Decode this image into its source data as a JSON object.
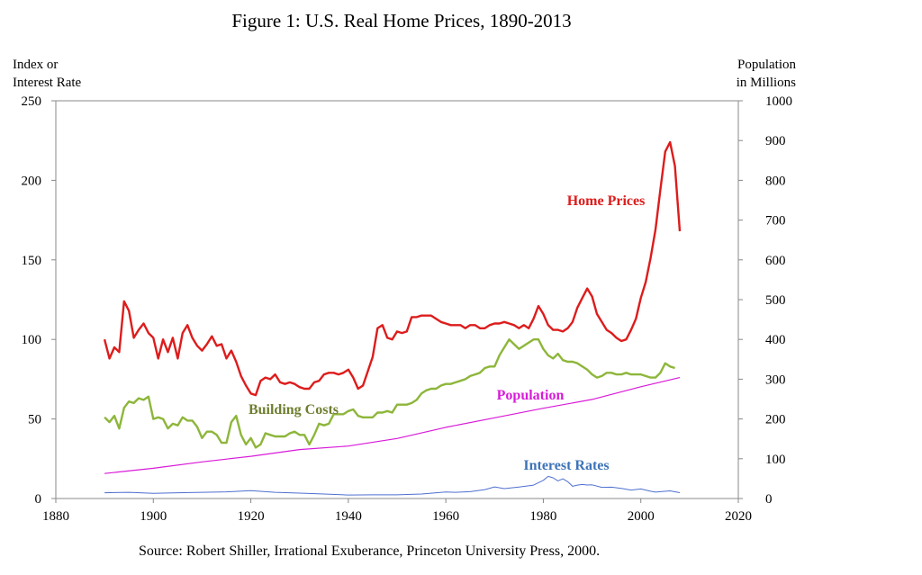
{
  "chart_data": {
    "type": "line",
    "title": "Figure 1: U.S. Real Home Prices, 1890-2013",
    "ylabel_left": [
      "Index or",
      "Interest Rate"
    ],
    "ylabel_right": [
      "Population",
      "in Millions"
    ],
    "source": "Source: Robert Shiller, Irrational Exuberance, Princeton University Press, 2000.",
    "xlim": [
      1880,
      2020
    ],
    "ylim_left": [
      0,
      250
    ],
    "ylim_right": [
      0,
      1000
    ],
    "x_ticks": [
      "1880",
      "1900",
      "1920",
      "1940",
      "1960",
      "1980",
      "2000",
      "2020"
    ],
    "y_left_ticks": [
      "0",
      "50",
      "100",
      "150",
      "200",
      "250"
    ],
    "y_right_ticks": [
      "0",
      "100",
      "200",
      "300",
      "400",
      "500",
      "600",
      "700",
      "800",
      "900",
      "1000"
    ],
    "grid": false,
    "legend": "inline labels",
    "series": [
      {
        "name": "Home Prices",
        "axis": "left",
        "color": "#dd1c1c",
        "points": [
          [
            1890,
            100
          ],
          [
            1891,
            88
          ],
          [
            1892,
            95
          ],
          [
            1893,
            92
          ],
          [
            1894,
            124
          ],
          [
            1895,
            118
          ],
          [
            1896,
            101
          ],
          [
            1897,
            106
          ],
          [
            1898,
            110
          ],
          [
            1899,
            104
          ],
          [
            1900,
            101
          ],
          [
            1901,
            88
          ],
          [
            1902,
            100
          ],
          [
            1903,
            92
          ],
          [
            1904,
            101
          ],
          [
            1905,
            88
          ],
          [
            1906,
            104
          ],
          [
            1907,
            109
          ],
          [
            1908,
            101
          ],
          [
            1909,
            96
          ],
          [
            1910,
            93
          ],
          [
            1911,
            97
          ],
          [
            1912,
            102
          ],
          [
            1913,
            96
          ],
          [
            1914,
            97
          ],
          [
            1915,
            88
          ],
          [
            1916,
            93
          ],
          [
            1917,
            86
          ],
          [
            1918,
            77
          ],
          [
            1919,
            71
          ],
          [
            1920,
            66
          ],
          [
            1921,
            65
          ],
          [
            1922,
            74
          ],
          [
            1923,
            76
          ],
          [
            1924,
            75
          ],
          [
            1925,
            78
          ],
          [
            1926,
            73
          ],
          [
            1927,
            72
          ],
          [
            1928,
            73
          ],
          [
            1929,
            72
          ],
          [
            1930,
            70
          ],
          [
            1931,
            69
          ],
          [
            1932,
            69
          ],
          [
            1933,
            73
          ],
          [
            1934,
            74
          ],
          [
            1935,
            78
          ],
          [
            1936,
            79
          ],
          [
            1937,
            79
          ],
          [
            1938,
            78
          ],
          [
            1939,
            79
          ],
          [
            1940,
            81
          ],
          [
            1941,
            76
          ],
          [
            1942,
            69
          ],
          [
            1943,
            71
          ],
          [
            1944,
            80
          ],
          [
            1945,
            89
          ],
          [
            1946,
            107
          ],
          [
            1947,
            109
          ],
          [
            1948,
            101
          ],
          [
            1949,
            100
          ],
          [
            1950,
            105
          ],
          [
            1951,
            104
          ],
          [
            1952,
            105
          ],
          [
            1953,
            114
          ],
          [
            1954,
            114
          ],
          [
            1955,
            115
          ],
          [
            1956,
            115
          ],
          [
            1957,
            115
          ],
          [
            1958,
            113
          ],
          [
            1959,
            111
          ],
          [
            1960,
            110
          ],
          [
            1961,
            109
          ],
          [
            1962,
            109
          ],
          [
            1963,
            109
          ],
          [
            1964,
            107
          ],
          [
            1965,
            109
          ],
          [
            1966,
            109
          ],
          [
            1967,
            107
          ],
          [
            1968,
            107
          ],
          [
            1969,
            109
          ],
          [
            1970,
            110
          ],
          [
            1971,
            110
          ],
          [
            1972,
            111
          ],
          [
            1973,
            110
          ],
          [
            1974,
            109
          ],
          [
            1975,
            107
          ],
          [
            1976,
            109
          ],
          [
            1977,
            107
          ],
          [
            1978,
            113
          ],
          [
            1979,
            121
          ],
          [
            1980,
            116
          ],
          [
            1981,
            109
          ],
          [
            1982,
            106
          ],
          [
            1983,
            106
          ],
          [
            1984,
            105
          ],
          [
            1985,
            107
          ],
          [
            1986,
            111
          ],
          [
            1987,
            120
          ],
          [
            1988,
            126
          ],
          [
            1989,
            132
          ],
          [
            1990,
            127
          ],
          [
            1991,
            116
          ],
          [
            1992,
            111
          ],
          [
            1993,
            106
          ],
          [
            1994,
            104
          ],
          [
            1995,
            101
          ],
          [
            1996,
            99
          ],
          [
            1997,
            100
          ],
          [
            1998,
            106
          ],
          [
            1999,
            113
          ],
          [
            2000,
            126
          ],
          [
            2001,
            136
          ],
          [
            2002,
            151
          ],
          [
            2003,
            169
          ],
          [
            2004,
            194
          ],
          [
            2005,
            218
          ],
          [
            2006,
            224
          ],
          [
            2007,
            209
          ],
          [
            2008,
            168
          ]
        ]
      },
      {
        "name": "Building Costs",
        "axis": "left",
        "color": "#8db63a",
        "points": [
          [
            1890,
            51
          ],
          [
            1891,
            48
          ],
          [
            1892,
            52
          ],
          [
            1893,
            44
          ],
          [
            1894,
            57
          ],
          [
            1895,
            61
          ],
          [
            1896,
            60
          ],
          [
            1897,
            63
          ],
          [
            1898,
            62
          ],
          [
            1899,
            64
          ],
          [
            1900,
            50
          ],
          [
            1901,
            51
          ],
          [
            1902,
            50
          ],
          [
            1903,
            44
          ],
          [
            1904,
            47
          ],
          [
            1905,
            46
          ],
          [
            1906,
            51
          ],
          [
            1907,
            49
          ],
          [
            1908,
            49
          ],
          [
            1909,
            45
          ],
          [
            1910,
            38
          ],
          [
            1911,
            42
          ],
          [
            1912,
            42
          ],
          [
            1913,
            40
          ],
          [
            1914,
            35
          ],
          [
            1915,
            35
          ],
          [
            1916,
            48
          ],
          [
            1917,
            52
          ],
          [
            1918,
            40
          ],
          [
            1919,
            34
          ],
          [
            1920,
            38
          ],
          [
            1921,
            32
          ],
          [
            1922,
            34
          ],
          [
            1923,
            41
          ],
          [
            1924,
            40
          ],
          [
            1925,
            39
          ],
          [
            1926,
            39
          ],
          [
            1927,
            39
          ],
          [
            1928,
            41
          ],
          [
            1929,
            42
          ],
          [
            1930,
            40
          ],
          [
            1931,
            40
          ],
          [
            1932,
            34
          ],
          [
            1933,
            40
          ],
          [
            1934,
            47
          ],
          [
            1935,
            46
          ],
          [
            1936,
            47
          ],
          [
            1937,
            53
          ],
          [
            1938,
            53
          ],
          [
            1939,
            53
          ],
          [
            1940,
            55
          ],
          [
            1941,
            56
          ],
          [
            1942,
            52
          ],
          [
            1943,
            51
          ],
          [
            1944,
            51
          ],
          [
            1945,
            51
          ],
          [
            1946,
            54
          ],
          [
            1947,
            54
          ],
          [
            1948,
            55
          ],
          [
            1949,
            54
          ],
          [
            1950,
            59
          ],
          [
            1951,
            59
          ],
          [
            1952,
            59
          ],
          [
            1953,
            60
          ],
          [
            1954,
            62
          ],
          [
            1955,
            66
          ],
          [
            1956,
            68
          ],
          [
            1957,
            69
          ],
          [
            1958,
            69
          ],
          [
            1959,
            71
          ],
          [
            1960,
            72
          ],
          [
            1961,
            72
          ],
          [
            1962,
            73
          ],
          [
            1963,
            74
          ],
          [
            1964,
            75
          ],
          [
            1965,
            77
          ],
          [
            1966,
            78
          ],
          [
            1967,
            79
          ],
          [
            1968,
            82
          ],
          [
            1969,
            83
          ],
          [
            1970,
            83
          ],
          [
            1971,
            90
          ],
          [
            1972,
            95
          ],
          [
            1973,
            100
          ],
          [
            1974,
            97
          ],
          [
            1975,
            94
          ],
          [
            1976,
            96
          ],
          [
            1977,
            98
          ],
          [
            1978,
            100
          ],
          [
            1979,
            100
          ],
          [
            1980,
            94
          ],
          [
            1981,
            90
          ],
          [
            1982,
            88
          ],
          [
            1983,
            91
          ],
          [
            1984,
            87
          ],
          [
            1985,
            86
          ],
          [
            1986,
            86
          ],
          [
            1987,
            85
          ],
          [
            1988,
            83
          ],
          [
            1989,
            81
          ],
          [
            1990,
            78
          ],
          [
            1991,
            76
          ],
          [
            1992,
            77
          ],
          [
            1993,
            79
          ],
          [
            1994,
            79
          ],
          [
            1995,
            78
          ],
          [
            1996,
            78
          ],
          [
            1997,
            79
          ],
          [
            1998,
            78
          ],
          [
            1999,
            78
          ],
          [
            2000,
            78
          ],
          [
            2001,
            77
          ],
          [
            2002,
            76
          ],
          [
            2003,
            76
          ],
          [
            2004,
            79
          ],
          [
            2005,
            85
          ],
          [
            2006,
            83
          ],
          [
            2007,
            82
          ]
        ]
      },
      {
        "name": "Population",
        "axis": "right",
        "color": "#d81bd8",
        "points": [
          [
            1890,
            63
          ],
          [
            1900,
            76
          ],
          [
            1910,
            92
          ],
          [
            1920,
            106
          ],
          [
            1930,
            123
          ],
          [
            1940,
            132
          ],
          [
            1950,
            151
          ],
          [
            1960,
            179
          ],
          [
            1970,
            203
          ],
          [
            1980,
            227
          ],
          [
            1990,
            249
          ],
          [
            2000,
            281
          ],
          [
            2008,
            304
          ]
        ]
      },
      {
        "name": "Interest Rates",
        "axis": "left",
        "color": "#4f6fcf",
        "points": [
          [
            1890,
            3.6
          ],
          [
            1895,
            3.9
          ],
          [
            1900,
            3.2
          ],
          [
            1905,
            3.6
          ],
          [
            1910,
            3.9
          ],
          [
            1915,
            4.2
          ],
          [
            1920,
            4.9
          ],
          [
            1925,
            3.9
          ],
          [
            1930,
            3.4
          ],
          [
            1935,
            2.8
          ],
          [
            1940,
            2.2
          ],
          [
            1945,
            2.3
          ],
          [
            1950,
            2.3
          ],
          [
            1955,
            2.8
          ],
          [
            1960,
            4.1
          ],
          [
            1962,
            3.9
          ],
          [
            1965,
            4.3
          ],
          [
            1968,
            5.6
          ],
          [
            1970,
            7.3
          ],
          [
            1972,
            6.2
          ],
          [
            1975,
            7.2
          ],
          [
            1978,
            8.4
          ],
          [
            1980,
            11.4
          ],
          [
            1981,
            13.9
          ],
          [
            1982,
            13.0
          ],
          [
            1983,
            11.1
          ],
          [
            1984,
            12.4
          ],
          [
            1985,
            10.6
          ],
          [
            1986,
            7.7
          ],
          [
            1987,
            8.4
          ],
          [
            1988,
            8.8
          ],
          [
            1989,
            8.5
          ],
          [
            1990,
            8.6
          ],
          [
            1992,
            7.0
          ],
          [
            1994,
            7.1
          ],
          [
            1996,
            6.4
          ],
          [
            1998,
            5.3
          ],
          [
            2000,
            6.0
          ],
          [
            2002,
            4.6
          ],
          [
            2003,
            4.0
          ],
          [
            2004,
            4.3
          ],
          [
            2006,
            4.8
          ],
          [
            2008,
            3.7
          ]
        ]
      }
    ],
    "annotations": {
      "home_prices": "Home Prices",
      "building_costs": "Building Costs",
      "population": "Population",
      "interest_rates": "Interest Rates"
    }
  }
}
